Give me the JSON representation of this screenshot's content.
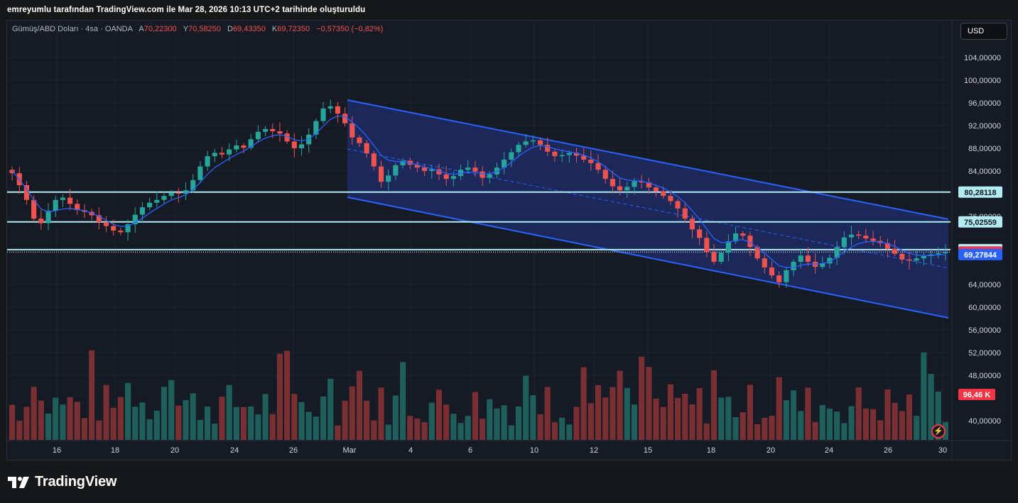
{
  "caption": "emreyumlu tarafından TradingView.com ile Mar 28, 2026 10:13 UTC+2 tarihinde oluşturuldu",
  "symbol": {
    "name": "Gümüş/ABD Doları · 4sa · OANDA",
    "open_label": "A",
    "open": "70,22300",
    "high_label": "Y",
    "high": "70,58250",
    "low_label": "D",
    "low": "69,43350",
    "close_label": "K",
    "close": "69,72350",
    "change": "−0,57350 (−0,82%)"
  },
  "currency_button": "USD",
  "logo_text": "TradingView",
  "colors": {
    "up": "#26a69a",
    "down": "#ef5350",
    "vol_up": "#1f5f5b",
    "vol_down": "#7a2f33",
    "channel": "#2962ff",
    "channel_fill": "#1e2e6b",
    "ma": "#2962ff",
    "level": "#b2ebf2",
    "last_price": "#f23645",
    "ma_badge": "#2962ff"
  },
  "chart_data": {
    "type": "candlestick",
    "ylim": [
      35.0,
      108.0
    ],
    "y_ticks": [
      "104,00000",
      "100,00000",
      "96,00000",
      "92,00000",
      "88,00000",
      "84,00000",
      "76,00000",
      "64,00000",
      "60,00000",
      "56,00000",
      "52,00000",
      "48,00000",
      "40,00000"
    ],
    "x_tick_labels": [
      "16",
      "18",
      "20",
      "24",
      "26",
      "Mar",
      "4",
      "6",
      "10",
      "12",
      "15",
      "18",
      "20",
      "24",
      "26",
      "30"
    ],
    "horizontal_levels": [
      {
        "value": 80.28118,
        "label": "80,28118"
      },
      {
        "value": 75.02559,
        "label": "75,02559"
      },
      {
        "value": 70.14539,
        "label": "70,14539"
      }
    ],
    "last_price": {
      "value": 69.7235,
      "label": "69,72350"
    },
    "ma_value": {
      "value": 69.27844,
      "label": "69,27844"
    },
    "volume_label": "96,46 K",
    "closes": [
      83.6,
      81.5,
      78.9,
      75.6,
      74.8,
      77.0,
      78.9,
      79.3,
      78.2,
      77.1,
      76.8,
      76.2,
      75.0,
      74.3,
      73.5,
      73.2,
      74.6,
      76.3,
      77.6,
      78.4,
      78.9,
      79.6,
      80.2,
      80.0,
      80.6,
      82.4,
      84.8,
      86.6,
      87.2,
      86.9,
      87.8,
      88.5,
      88.1,
      89.6,
      90.9,
      91.4,
      91.0,
      90.6,
      89.2,
      88.0,
      88.7,
      90.4,
      92.8,
      95.0,
      95.4,
      94.1,
      92.4,
      89.9,
      88.9,
      87.1,
      84.8,
      82.1,
      83.2,
      85.0,
      85.8,
      85.1,
      84.6,
      84.0,
      84.3,
      83.4,
      82.6,
      83.1,
      84.2,
      84.6,
      83.9,
      82.8,
      83.4,
      84.6,
      86.0,
      87.3,
      88.6,
      89.2,
      89.4,
      88.6,
      87.4,
      86.6,
      86.8,
      87.2,
      86.7,
      86.0,
      85.4,
      84.2,
      82.6,
      81.3,
      80.6,
      81.2,
      82.2,
      82.0,
      81.1,
      80.4,
      79.6,
      78.7,
      77.4,
      75.6,
      73.7,
      72.2,
      69.7,
      68.0,
      69.6,
      71.6,
      73.0,
      72.6,
      70.6,
      68.6,
      67.0,
      65.6,
      64.4,
      66.5,
      68.0,
      69.1,
      68.0,
      67.1,
      67.7,
      68.7,
      70.6,
      72.3,
      72.8,
      72.6,
      72.1,
      71.7,
      71.3,
      70.3,
      69.4,
      68.4,
      68.2,
      68.6,
      69.0,
      69.3,
      69.5,
      69.72
    ],
    "ma": [
      84.0,
      82.5,
      80.8,
      78.9,
      77.3,
      76.8,
      77.0,
      77.3,
      77.4,
      77.2,
      77.0,
      76.6,
      76.0,
      75.3,
      74.6,
      74.2,
      74.3,
      74.9,
      75.7,
      76.6,
      77.4,
      78.2,
      78.9,
      79.3,
      79.8,
      80.7,
      82.0,
      83.4,
      84.6,
      85.4,
      86.2,
      86.9,
      87.5,
      88.3,
      89.1,
      89.8,
      90.2,
      90.4,
      90.1,
      89.5,
      89.3,
      89.6,
      90.6,
      91.9,
      93.1,
      93.7,
      93.6,
      92.6,
      91.5,
      90.1,
      88.5,
      86.8,
      85.9,
      85.7,
      85.6,
      85.4,
      85.1,
      84.7,
      84.4,
      84.0,
      83.6,
      83.4,
      83.6,
      83.8,
      83.8,
      83.5,
      83.5,
      83.9,
      84.6,
      85.5,
      86.6,
      87.5,
      88.2,
      88.5,
      88.3,
      87.9,
      87.6,
      87.4,
      87.1,
      86.8,
      86.3,
      85.6,
      84.7,
      83.7,
      82.8,
      82.4,
      82.3,
      82.2,
      81.9,
      81.5,
      81.0,
      80.3,
      79.5,
      78.4,
      77.0,
      75.5,
      73.8,
      72.1,
      71.4,
      71.4,
      71.8,
      71.9,
      71.4,
      70.5,
      69.5,
      68.4,
      67.3,
      67.0,
      67.0,
      67.4,
      67.6,
      67.6,
      67.7,
      68.0,
      68.8,
      69.8,
      70.6,
      71.2,
      71.5,
      71.6,
      71.5,
      71.2,
      70.7,
      70.0,
      69.5,
      69.2,
      69.1,
      69.1,
      69.2,
      69.28
    ]
  }
}
